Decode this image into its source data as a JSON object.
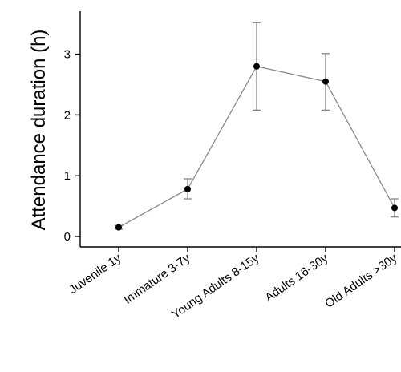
{
  "chart_data": {
    "type": "line",
    "title": "",
    "ylabel": "Attendance duration (h)",
    "xlabel": "",
    "categories": [
      "Juvenile 1y",
      "Immature 3-7y",
      "Young Adults 8-15y",
      "Adults 16-30y",
      "Old Adults >30y"
    ],
    "series": [
      {
        "values": [
          0.15,
          0.78,
          2.8,
          2.55,
          0.47
        ],
        "error_low": [
          0.12,
          0.62,
          2.08,
          2.08,
          0.32
        ],
        "error_high": [
          0.18,
          0.95,
          3.52,
          3.01,
          0.62
        ]
      }
    ],
    "yticks": [
      0,
      1,
      2,
      3
    ],
    "ylim": [
      -0.15,
      3.6
    ],
    "grid": false,
    "colors": {
      "line": "#8a8a8a",
      "marker": "#000000",
      "error": "#6e6e6e",
      "axis": "#000000"
    }
  }
}
